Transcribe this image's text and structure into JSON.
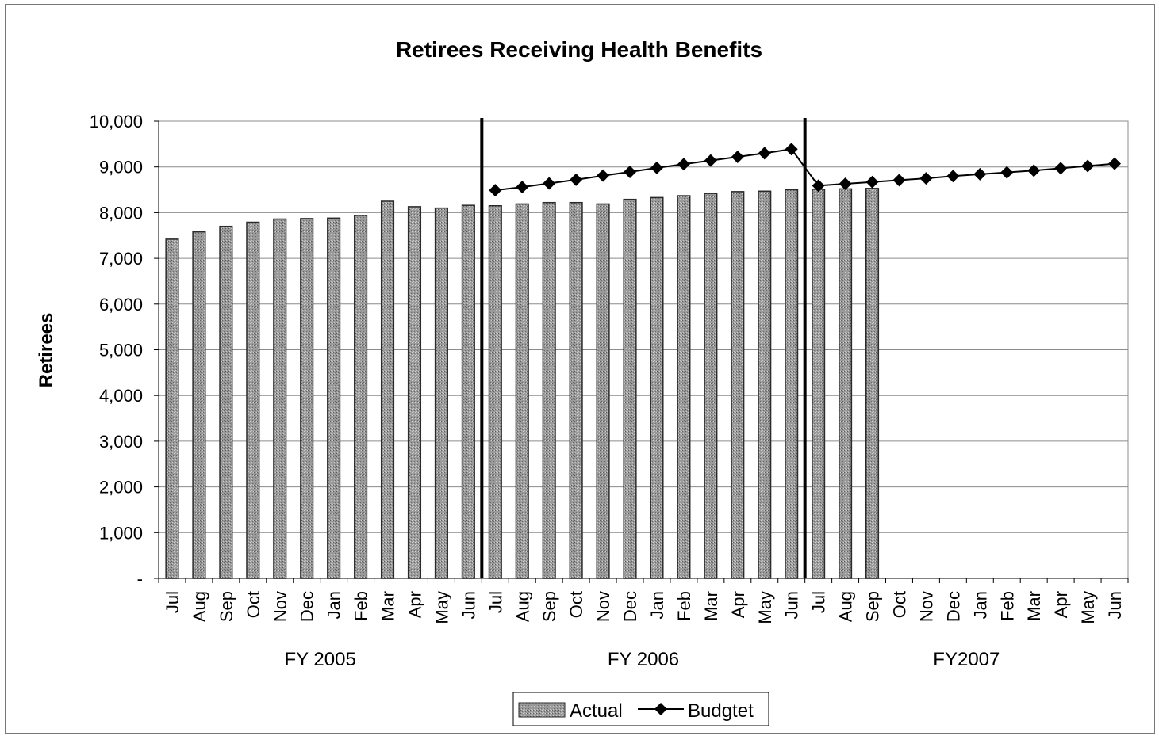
{
  "chart_data": {
    "type": "bar",
    "title": "Retirees Receiving Health Benefits",
    "xlabel": "",
    "ylabel": "Retirees",
    "ylim": [
      0,
      10000
    ],
    "yticks": [
      0,
      1000,
      2000,
      3000,
      4000,
      5000,
      6000,
      7000,
      8000,
      9000,
      10000
    ],
    "ytick_labels": [
      "-",
      "1,000",
      "2,000",
      "3,000",
      "4,000",
      "5,000",
      "6,000",
      "7,000",
      "8,000",
      "9,000",
      "10,000"
    ],
    "grid": true,
    "legend_position": "bottom-center",
    "categories": [
      "Jul",
      "Aug",
      "Sep",
      "Oct",
      "Nov",
      "Dec",
      "Jan",
      "Feb",
      "Mar",
      "Apr",
      "May",
      "Jun",
      "Jul",
      "Aug",
      "Sep",
      "Oct",
      "Nov",
      "Dec",
      "Jan",
      "Feb",
      "Mar",
      "Apr",
      "May",
      "Jun",
      "Jul",
      "Aug",
      "Sep",
      "Oct",
      "Nov",
      "Dec",
      "Jan",
      "Feb",
      "Mar",
      "Apr",
      "May",
      "Jun"
    ],
    "groups": [
      {
        "label": "FY 2005",
        "start": 0,
        "end": 11
      },
      {
        "label": "FY 2006",
        "start": 12,
        "end": 23
      },
      {
        "label": "FY2007",
        "start": 24,
        "end": 35
      }
    ],
    "series": [
      {
        "name": "Actual",
        "kind": "bar",
        "values": [
          7420,
          7580,
          7700,
          7790,
          7860,
          7870,
          7880,
          7940,
          8250,
          8130,
          8100,
          8160,
          8150,
          8190,
          8220,
          8220,
          8190,
          8290,
          8330,
          8370,
          8420,
          8460,
          8470,
          8500,
          8510,
          8520,
          8530,
          null,
          null,
          null,
          null,
          null,
          null,
          null,
          null,
          null
        ]
      },
      {
        "name": "Budgtet",
        "kind": "line",
        "values": [
          null,
          null,
          null,
          null,
          null,
          null,
          null,
          null,
          null,
          null,
          null,
          null,
          8490,
          8560,
          8640,
          8720,
          8810,
          8890,
          8980,
          9060,
          9140,
          9220,
          9300,
          9390,
          8590,
          8630,
          8670,
          8710,
          8750,
          8800,
          8840,
          8880,
          8920,
          8970,
          9020,
          9070
        ]
      }
    ]
  },
  "colors": {
    "bar_fill": "#9a9a9a",
    "bar_stroke": "#2a2a2a",
    "line": "#000000",
    "grid": "#8c8c8c",
    "divider": "#000000"
  }
}
